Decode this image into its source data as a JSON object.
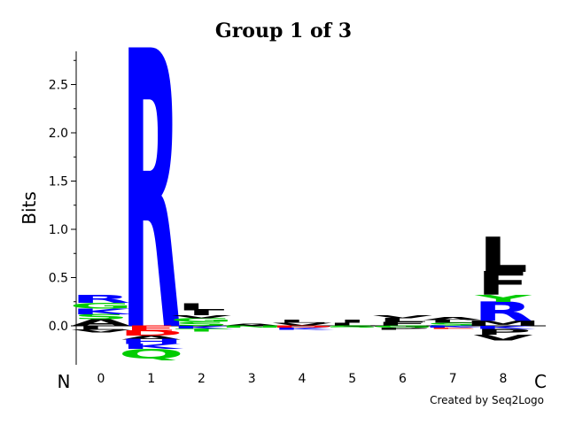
{
  "chart_data": {
    "type": "sequence-logo",
    "title": "Group 1 of 3",
    "ylabel": "Bits",
    "ylim": [
      -0.4,
      2.8
    ],
    "yticks": [
      "0.0",
      "0.5",
      "1.0",
      "1.5",
      "2.0",
      "2.5"
    ],
    "positions": [
      "0",
      "1",
      "2",
      "3",
      "4",
      "5",
      "6",
      "7",
      "8"
    ],
    "n_terminus_label": "N",
    "c_terminus_label": "C",
    "credit": "Created by Seq2Logo",
    "colors": {
      "basic": "#0000ff",
      "hydrophobic": "#000000",
      "polar": "#00cc00",
      "acidic": "#ff0000"
    },
    "columns": [
      {
        "position": "0",
        "positive": [
          {
            "residue": "A",
            "bits": 0.07,
            "color": "#000000"
          },
          {
            "residue": "S",
            "bits": 0.05,
            "color": "#00cc00"
          },
          {
            "residue": "K",
            "bits": 0.06,
            "color": "#0000ff"
          },
          {
            "residue": "G",
            "bits": 0.06,
            "color": "#00cc00"
          },
          {
            "residue": "R",
            "bits": 0.08,
            "color": "#0000ff"
          }
        ],
        "negative": [
          {
            "residue": "L",
            "bits": 0.04,
            "color": "#000000"
          },
          {
            "residue": "V",
            "bits": 0.03,
            "color": "#000000"
          }
        ]
      },
      {
        "position": "1",
        "positive": [
          {
            "residue": "R",
            "bits": 2.85,
            "color": "#0000ff"
          }
        ],
        "negative": [
          {
            "residue": "E",
            "bits": 0.05,
            "color": "#ff0000"
          },
          {
            "residue": "D",
            "bits": 0.05,
            "color": "#ff0000"
          },
          {
            "residue": "A",
            "bits": 0.04,
            "color": "#000000"
          },
          {
            "residue": "H",
            "bits": 0.05,
            "color": "#0000ff"
          },
          {
            "residue": "K",
            "bits": 0.05,
            "color": "#0000ff"
          },
          {
            "residue": "Q",
            "bits": 0.1,
            "color": "#00cc00"
          }
        ]
      },
      {
        "position": "2",
        "positive": [
          {
            "residue": "S",
            "bits": 0.04,
            "color": "#00cc00"
          },
          {
            "residue": "G",
            "bits": 0.04,
            "color": "#00cc00"
          },
          {
            "residue": "V",
            "bits": 0.03,
            "color": "#000000"
          },
          {
            "residue": "I",
            "bits": 0.05,
            "color": "#000000"
          },
          {
            "residue": "L",
            "bits": 0.07,
            "color": "#000000"
          }
        ],
        "negative": [
          {
            "residue": "K",
            "bits": 0.03,
            "color": "#0000ff"
          },
          {
            "residue": "T",
            "bits": 0.03,
            "color": "#00cc00"
          }
        ]
      },
      {
        "position": "3",
        "positive": [
          {
            "residue": "A",
            "bits": 0.02,
            "color": "#000000"
          }
        ],
        "negative": [
          {
            "residue": "N",
            "bits": 0.02,
            "color": "#00cc00"
          }
        ]
      },
      {
        "position": "4",
        "positive": [
          {
            "residue": "V",
            "bits": 0.03,
            "color": "#000000"
          },
          {
            "residue": "L",
            "bits": 0.03,
            "color": "#000000"
          }
        ],
        "negative": [
          {
            "residue": "D",
            "bits": 0.02,
            "color": "#ff0000"
          },
          {
            "residue": "K",
            "bits": 0.02,
            "color": "#0000ff"
          }
        ]
      },
      {
        "position": "5",
        "positive": [
          {
            "residue": "L",
            "bits": 0.03,
            "color": "#000000"
          },
          {
            "residue": "I",
            "bits": 0.03,
            "color": "#000000"
          }
        ],
        "negative": [
          {
            "residue": "S",
            "bits": 0.02,
            "color": "#00cc00"
          }
        ]
      },
      {
        "position": "6",
        "positive": [
          {
            "residue": "F",
            "bits": 0.04,
            "color": "#000000"
          },
          {
            "residue": "L",
            "bits": 0.04,
            "color": "#000000"
          },
          {
            "residue": "V",
            "bits": 0.03,
            "color": "#000000"
          }
        ],
        "negative": [
          {
            "residue": "G",
            "bits": 0.02,
            "color": "#00cc00"
          },
          {
            "residue": "P",
            "bits": 0.02,
            "color": "#000000"
          }
        ]
      },
      {
        "position": "7",
        "positive": [
          {
            "residue": "S",
            "bits": 0.03,
            "color": "#00cc00"
          },
          {
            "residue": "L",
            "bits": 0.03,
            "color": "#000000"
          },
          {
            "residue": "A",
            "bits": 0.03,
            "color": "#000000"
          }
        ],
        "negative": [
          {
            "residue": "K",
            "bits": 0.02,
            "color": "#0000ff"
          },
          {
            "residue": "E",
            "bits": 0.01,
            "color": "#ff0000"
          }
        ]
      },
      {
        "position": "8",
        "positive": [
          {
            "residue": "M",
            "bits": 0.05,
            "color": "#000000"
          },
          {
            "residue": "R",
            "bits": 0.2,
            "color": "#0000ff"
          },
          {
            "residue": "Y",
            "bits": 0.07,
            "color": "#00cc00"
          },
          {
            "residue": "F",
            "bits": 0.24,
            "color": "#000000"
          },
          {
            "residue": "L",
            "bits": 0.36,
            "color": "#000000"
          }
        ],
        "negative": [
          {
            "residue": "K",
            "bits": 0.03,
            "color": "#0000ff"
          },
          {
            "residue": "P",
            "bits": 0.06,
            "color": "#000000"
          },
          {
            "residue": "V",
            "bits": 0.06,
            "color": "#000000"
          }
        ]
      }
    ]
  }
}
